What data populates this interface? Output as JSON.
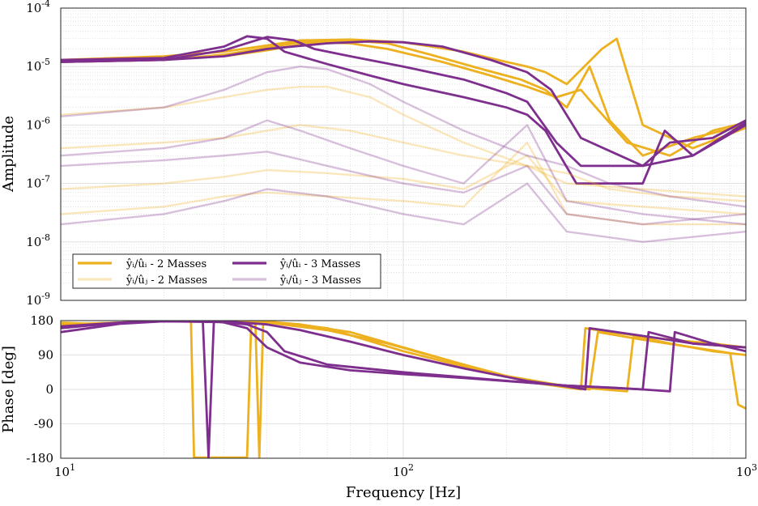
{
  "chart_data": [
    {
      "type": "line",
      "panel": "amplitude",
      "ylabel": "Amplitude",
      "xscale": "log",
      "yscale": "log",
      "xlim": [
        10,
        1000
      ],
      "ylim": [
        1e-09,
        0.0001
      ],
      "grid": true,
      "x_ticks": [
        10,
        100,
        1000
      ],
      "x_tick_labels": [
        {
          "base": "10",
          "exp": "1"
        },
        {
          "base": "10",
          "exp": "2"
        },
        {
          "base": "10",
          "exp": "3"
        }
      ],
      "y_ticks": [
        1e-09,
        1e-08,
        1e-07,
        1e-06,
        1e-05,
        0.0001
      ],
      "y_tick_labels": [
        {
          "base": "10",
          "exp": "-9"
        },
        {
          "base": "10",
          "exp": "-8"
        },
        {
          "base": "10",
          "exp": "-7"
        },
        {
          "base": "10",
          "exp": "-6"
        },
        {
          "base": "10",
          "exp": "-5"
        },
        {
          "base": "10",
          "exp": "-4"
        }
      ],
      "legend": {
        "placement": "lower-left",
        "entries": [
          {
            "label": "ŷᵢ/ûᵢ - 2 Masses",
            "color": "#EDB120",
            "opacity": 1.0
          },
          {
            "label": "ŷᵢ/ûᵢ - 3 Masses",
            "color": "#7E2F8E",
            "opacity": 1.0
          },
          {
            "label": "ŷᵢ/ûⱼ - 2 Masses",
            "color": "#EDB120",
            "opacity": 0.3
          },
          {
            "label": "ŷᵢ/ûⱼ - 3 Masses",
            "color": "#7E2F8E",
            "opacity": 0.3
          }
        ]
      },
      "series": [
        {
          "group": "2 Masses direct",
          "color": "#EDB120",
          "opacity": 1.0,
          "x": [
            10,
            20,
            30,
            40,
            50,
            70,
            100,
            150,
            200,
            230,
            260,
            300,
            380,
            420,
            500,
            700,
            1000
          ],
          "y": [
            1.3e-05,
            1.5e-05,
            1.8e-05,
            2.3e-05,
            2.8e-05,
            2.9e-05,
            2.6e-05,
            1.8e-05,
            1.2e-05,
            1e-05,
            8e-06,
            5e-06,
            2e-05,
            3e-05,
            1e-06,
            4e-07,
            9e-07
          ]
        },
        {
          "group": "2 Masses direct",
          "color": "#EDB120",
          "opacity": 1.0,
          "x": [
            10,
            20,
            30,
            40,
            50,
            70,
            90,
            120,
            170,
            220,
            260,
            300,
            350,
            400,
            500,
            700,
            1000
          ],
          "y": [
            1.2e-05,
            1.3e-05,
            1.6e-05,
            2.1e-05,
            2.6e-05,
            2.8e-05,
            2.5e-05,
            1.6e-05,
            9e-06,
            6e-06,
            4e-06,
            2e-06,
            1e-05,
            1.2e-06,
            3e-07,
            6e-07,
            1e-06
          ]
        },
        {
          "group": "2 Masses direct",
          "color": "#EDB120",
          "opacity": 1.0,
          "x": [
            10,
            20,
            30,
            40,
            55,
            70,
            90,
            130,
            180,
            230,
            280,
            330,
            360,
            450,
            600,
            800,
            1000
          ],
          "y": [
            1.3e-05,
            1.35e-05,
            1.5e-05,
            1.9e-05,
            2.6e-05,
            2.5e-05,
            2e-05,
            1.2e-05,
            7e-06,
            4.5e-06,
            3e-06,
            4e-06,
            2.2e-06,
            5e-07,
            3e-07,
            8e-07,
            1.1e-06
          ]
        },
        {
          "group": "3 Masses direct",
          "color": "#7E2F8E",
          "opacity": 1.0,
          "x": [
            10,
            20,
            30,
            35,
            40,
            45,
            60,
            80,
            100,
            150,
            200,
            230,
            260,
            320,
            500,
            580,
            700,
            1000
          ],
          "y": [
            1.3e-05,
            1.4e-05,
            2.2e-05,
            3.3e-05,
            3e-05,
            1.8e-05,
            1.1e-05,
            7e-06,
            5e-06,
            3e-06,
            2e-06,
            1.5e-06,
            8e-07,
            1e-07,
            1e-07,
            8e-07,
            3e-07,
            1e-06
          ]
        },
        {
          "group": "3 Masses direct",
          "color": "#7E2F8E",
          "opacity": 1.0,
          "x": [
            10,
            20,
            30,
            40,
            48,
            55,
            70,
            100,
            150,
            200,
            230,
            280,
            330,
            500,
            600,
            800,
            1000
          ],
          "y": [
            1.2e-05,
            1.3e-05,
            1.9e-05,
            3.2e-05,
            2.8e-05,
            2e-05,
            1.5e-05,
            1e-05,
            6e-06,
            3.5e-06,
            2.5e-06,
            5e-07,
            2e-07,
            2e-07,
            5e-07,
            6e-07,
            1.2e-06
          ]
        },
        {
          "group": "3 Masses direct",
          "color": "#7E2F8E",
          "opacity": 1.0,
          "x": [
            10,
            20,
            30,
            40,
            60,
            80,
            100,
            130,
            180,
            230,
            270,
            330,
            500,
            700,
            1000
          ],
          "y": [
            1.2e-05,
            1.3e-05,
            1.5e-05,
            2e-05,
            2.5e-05,
            2.7e-05,
            2.6e-05,
            2.2e-05,
            1.3e-05,
            8e-06,
            4e-06,
            6e-07,
            2e-07,
            3e-07,
            1.1e-06
          ]
        },
        {
          "group": "2 Masses coupling",
          "color": "#EDB120",
          "opacity": 0.3,
          "x": [
            10,
            20,
            30,
            40,
            50,
            60,
            80,
            100,
            150,
            230,
            300,
            400,
            600,
            1000
          ],
          "y": [
            1.5e-06,
            2e-06,
            3e-06,
            4e-06,
            4.5e-06,
            4.5e-06,
            3e-06,
            1.5e-06,
            5e-07,
            2e-07,
            1.5e-07,
            8e-08,
            6e-08,
            5e-08
          ]
        },
        {
          "group": "2 Masses coupling",
          "color": "#EDB120",
          "opacity": 0.3,
          "x": [
            10,
            20,
            30,
            40,
            50,
            70,
            100,
            150,
            230,
            300,
            500,
            1000
          ],
          "y": [
            4e-07,
            5e-07,
            6e-07,
            8e-07,
            1e-06,
            8e-07,
            5e-07,
            3e-07,
            2e-07,
            1e-07,
            8e-08,
            6e-08
          ]
        },
        {
          "group": "2 Masses coupling",
          "color": "#EDB120",
          "opacity": 0.3,
          "x": [
            10,
            20,
            30,
            40,
            60,
            100,
            150,
            230,
            300,
            500,
            1000
          ],
          "y": [
            8e-08,
            1e-07,
            1.3e-07,
            1.7e-07,
            1.5e-07,
            1.2e-07,
            8e-08,
            3e-07,
            5e-08,
            4e-08,
            3e-08
          ]
        },
        {
          "group": "2 Masses coupling",
          "color": "#EDB120",
          "opacity": 0.3,
          "x": [
            10,
            20,
            30,
            40,
            60,
            100,
            150,
            230,
            300,
            500,
            1000
          ],
          "y": [
            3e-08,
            4e-08,
            6e-08,
            7e-08,
            6e-08,
            5e-08,
            4e-08,
            5e-07,
            3e-08,
            2e-08,
            2e-08
          ]
        },
        {
          "group": "3 Masses coupling",
          "color": "#7E2F8E",
          "opacity": 0.3,
          "x": [
            10,
            20,
            30,
            40,
            50,
            60,
            80,
            100,
            150,
            230,
            300,
            400,
            600,
            1000
          ],
          "y": [
            1.4e-06,
            2e-06,
            4e-06,
            8e-06,
            1e-05,
            9e-06,
            5e-06,
            2.5e-06,
            8e-07,
            3e-07,
            2e-07,
            1e-07,
            6e-08,
            4e-08
          ]
        },
        {
          "group": "3 Masses coupling",
          "color": "#7E2F8E",
          "opacity": 0.3,
          "x": [
            10,
            20,
            30,
            40,
            50,
            70,
            100,
            150,
            230,
            300,
            500,
            1000
          ],
          "y": [
            3e-07,
            4e-07,
            6e-07,
            1.2e-06,
            8e-07,
            4e-07,
            2e-07,
            1e-07,
            1e-06,
            5e-08,
            3e-08,
            2e-08
          ]
        },
        {
          "group": "3 Masses coupling",
          "color": "#7E2F8E",
          "opacity": 0.3,
          "x": [
            10,
            20,
            30,
            40,
            60,
            100,
            150,
            230,
            300,
            500,
            1000
          ],
          "y": [
            2e-08,
            3e-08,
            5e-08,
            8e-08,
            6e-08,
            3e-08,
            2e-08,
            1e-07,
            1.5e-08,
            1e-08,
            1.5e-08
          ]
        },
        {
          "group": "3 Masses coupling",
          "color": "#7E2F8E",
          "opacity": 0.3,
          "x": [
            10,
            20,
            30,
            40,
            60,
            100,
            150,
            230,
            300,
            500,
            1000
          ],
          "y": [
            2e-07,
            2.5e-07,
            3e-07,
            3.5e-07,
            2e-07,
            1e-07,
            7e-08,
            2e-07,
            3e-08,
            2e-08,
            3e-08
          ]
        }
      ]
    },
    {
      "type": "line",
      "panel": "phase",
      "xlabel": "Frequency [Hz]",
      "ylabel": "Phase [deg]",
      "xscale": "log",
      "xlim": [
        10,
        1000
      ],
      "ylim": [
        -180,
        180
      ],
      "grid": true,
      "y_ticks": [
        -180,
        -90,
        0,
        90,
        180
      ],
      "y_tick_labels": [
        "-180",
        "-90",
        "0",
        "90",
        "180"
      ],
      "series": [
        {
          "group": "2 Masses direct",
          "color": "#EDB120",
          "opacity": 1.0,
          "x": [
            10,
            12,
            15,
            20,
            24,
            24.5,
            25,
            34,
            35,
            36,
            40,
            60,
            100,
            150,
            200,
            230,
            300,
            330,
            340,
            400,
            600,
            800,
            1000
          ],
          "y": [
            175,
            172,
            175,
            178,
            178,
            -178,
            -178,
            -178,
            -178,
            178,
            178,
            160,
            100,
            60,
            35,
            20,
            5,
            0,
            160,
            150,
            130,
            120,
            110
          ]
        },
        {
          "group": "2 Masses direct",
          "color": "#EDB120",
          "opacity": 1.0,
          "x": [
            10,
            15,
            20,
            30,
            37,
            38,
            39,
            50,
            70,
            100,
            150,
            200,
            300,
            350,
            370,
            500,
            700,
            900,
            950,
            1000
          ],
          "y": [
            170,
            175,
            178,
            178,
            178,
            -178,
            178,
            170,
            150,
            110,
            65,
            35,
            8,
            0,
            150,
            130,
            110,
            95,
            -40,
            -50
          ]
        },
        {
          "group": "2 Masses direct",
          "color": "#EDB120",
          "opacity": 1.0,
          "x": [
            10,
            15,
            20,
            30,
            40,
            60,
            90,
            130,
            200,
            300,
            450,
            470,
            600,
            800,
            1000
          ],
          "y": [
            168,
            175,
            178,
            178,
            175,
            155,
            120,
            80,
            35,
            8,
            -5,
            140,
            120,
            100,
            90
          ]
        },
        {
          "group": "3 Masses direct",
          "color": "#7E2F8E",
          "opacity": 1.0,
          "x": [
            10,
            15,
            20,
            26,
            27,
            28,
            30,
            35,
            40,
            50,
            70,
            100,
            150,
            230,
            300,
            400,
            500,
            520,
            700,
            1000
          ],
          "y": [
            150,
            172,
            178,
            178,
            -178,
            178,
            175,
            160,
            110,
            70,
            50,
            40,
            30,
            18,
            10,
            5,
            0,
            150,
            120,
            110
          ]
        },
        {
          "group": "3 Masses direct",
          "color": "#7E2F8E",
          "opacity": 1.0,
          "x": [
            10,
            15,
            20,
            30,
            35,
            40,
            45,
            60,
            100,
            150,
            230,
            300,
            500,
            600,
            620,
            800,
            1000
          ],
          "y": [
            160,
            175,
            178,
            176,
            170,
            150,
            100,
            65,
            45,
            32,
            18,
            10,
            0,
            -5,
            150,
            120,
            100
          ]
        },
        {
          "group": "3 Masses direct",
          "color": "#7E2F8E",
          "opacity": 1.0,
          "x": [
            10,
            15,
            20,
            30,
            40,
            50,
            70,
            100,
            150,
            230,
            300,
            340,
            350,
            500,
            700,
            1000
          ],
          "y": [
            165,
            175,
            178,
            178,
            170,
            155,
            125,
            90,
            55,
            22,
            8,
            0,
            160,
            140,
            120,
            110
          ]
        }
      ]
    }
  ]
}
